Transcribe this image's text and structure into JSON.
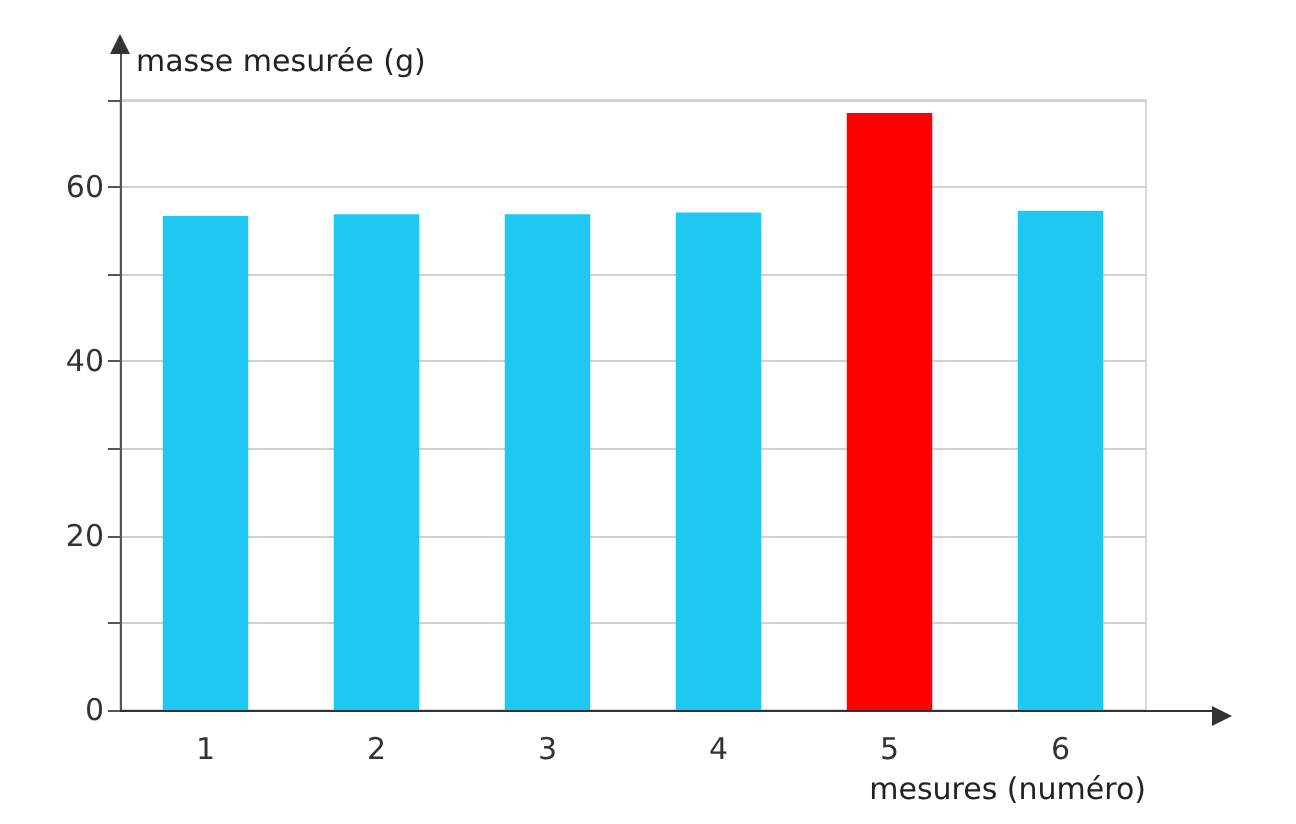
{
  "chart_data": {
    "type": "bar",
    "ylabel": "masse mesurée (g)",
    "xlabel": "mesures (numéro)",
    "categories": [
      "1",
      "2",
      "3",
      "4",
      "5",
      "6"
    ],
    "values": [
      56.7,
      56.9,
      56.9,
      57.1,
      68.5,
      57.3
    ],
    "colors": [
      "#1ec8f0",
      "#1ec8f0",
      "#1ec8f0",
      "#1ec8f0",
      "#ff0000",
      "#1ec8f0"
    ],
    "ylim": [
      0,
      70
    ],
    "yticks": [
      0,
      {
        "value": 10,
        "label": null
      },
      20,
      {
        "value": 30,
        "label": null
      },
      40,
      {
        "value": 50,
        "label": null
      },
      60,
      {
        "value": 70,
        "label": null
      }
    ],
    "grid": "y"
  }
}
